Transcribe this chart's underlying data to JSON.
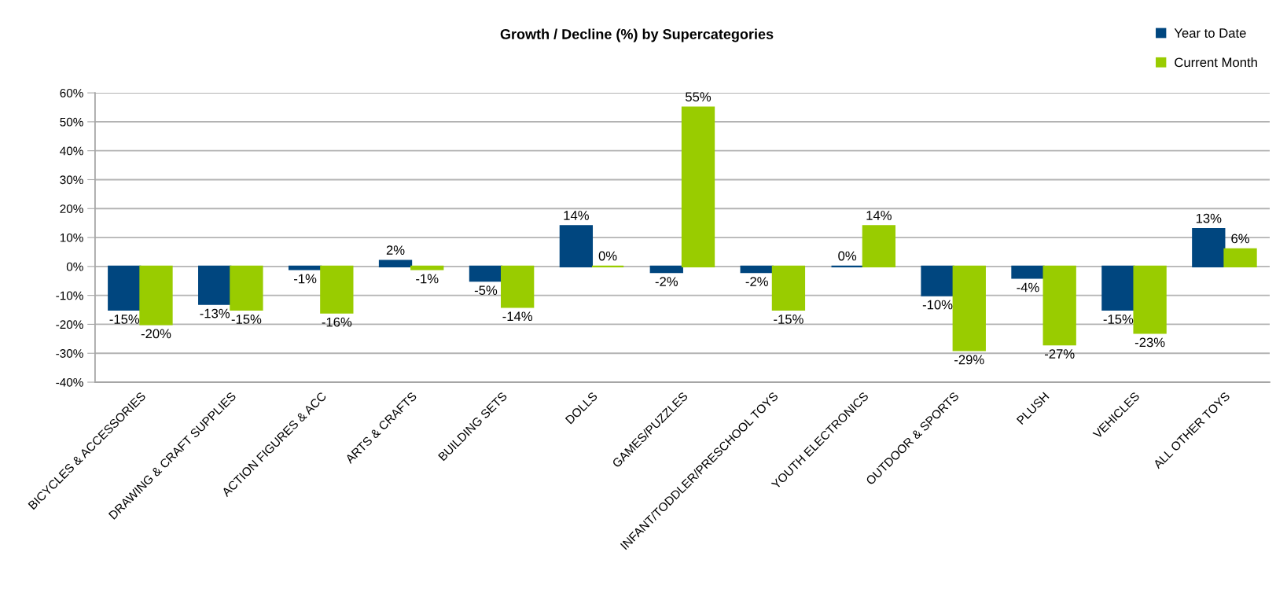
{
  "chart_data": {
    "type": "bar",
    "title": "Growth / Decline (%) by Supercategories",
    "categories": [
      "BICYCLES & ACCESSORIES",
      "DRAWING & CRAFT SUPPLIES",
      "ACTION FIGURES & ACC",
      "ARTS & CRAFTS",
      "BUILDING SETS",
      "DOLLS",
      "GAMES/PUZZLES",
      "INFANT/TODDLER/PRESCHOOL TOYS",
      "YOUTH ELECTRONICS",
      "OUTDOOR & SPORTS",
      "PLUSH",
      "VEHICLES",
      "ALL OTHER TOYS"
    ],
    "series": [
      {
        "name": "Year to Date",
        "color": "#00467f",
        "values": [
          -15,
          -13,
          -1,
          2,
          -5,
          14,
          -2,
          -2,
          0,
          -10,
          -4,
          -15,
          13
        ],
        "value_labels": [
          "-15%",
          "-13%",
          "-1%",
          "2%",
          "-5%",
          "14%",
          "-2%",
          "-2%",
          "0%",
          "-10%",
          "-4%",
          "-15%",
          "13%"
        ]
      },
      {
        "name": "Current Month",
        "color": "#99cc00",
        "values": [
          -20,
          -15,
          -16,
          -1,
          -14,
          0,
          55,
          -15,
          14,
          -29,
          -27,
          -23,
          6
        ],
        "value_labels": [
          "-20%",
          "-15%",
          "-16%",
          "-1%",
          "-14%",
          "0%",
          "55%",
          "-15%",
          "14%",
          "-29%",
          "-27%",
          "-23%",
          "6%"
        ]
      }
    ],
    "ylim": [
      -40,
      60
    ],
    "yticks": [
      {
        "value": -40,
        "label": "-40%"
      },
      {
        "value": -30,
        "label": "-30%"
      },
      {
        "value": -20,
        "label": "-20%"
      },
      {
        "value": -10,
        "label": "-10%"
      },
      {
        "value": 0,
        "label": "0%"
      },
      {
        "value": 10,
        "label": "10%"
      },
      {
        "value": 20,
        "label": "20%"
      },
      {
        "value": 30,
        "label": "30%"
      },
      {
        "value": 40,
        "label": "40%"
      },
      {
        "value": 50,
        "label": "50%"
      },
      {
        "value": 60,
        "label": "60%"
      }
    ],
    "grid": "y",
    "legend": "top right"
  }
}
